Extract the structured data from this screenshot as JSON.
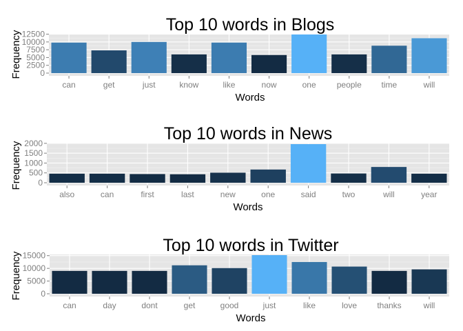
{
  "chart_data": [
    {
      "type": "bar",
      "title": "Top 10 words in Blogs",
      "xlabel": "Words",
      "ylabel": "Frequency",
      "categories": [
        "can",
        "get",
        "just",
        "know",
        "like",
        "now",
        "one",
        "people",
        "time",
        "will"
      ],
      "values": [
        9800,
        7300,
        10000,
        6000,
        9800,
        5800,
        12400,
        6000,
        8800,
        11200
      ],
      "yticks": [
        0,
        2500,
        5000,
        7500,
        10000,
        12500
      ],
      "ylim": [
        0,
        12400
      ],
      "grid": true,
      "legend": "none",
      "color_low": "#132b43",
      "color_high": "#56b1f7"
    },
    {
      "type": "bar",
      "title": "Top 10 words in News",
      "xlabel": "Words",
      "ylabel": "Frequency",
      "categories": [
        "also",
        "can",
        "first",
        "last",
        "new",
        "one",
        "said",
        "two",
        "will",
        "year"
      ],
      "values": [
        460,
        460,
        440,
        430,
        510,
        670,
        1960,
        470,
        800,
        460
      ],
      "yticks": [
        0,
        500,
        1000,
        1500,
        2000
      ],
      "ylim": [
        0,
        1960
      ],
      "grid": true,
      "legend": "none",
      "color_low": "#132b43",
      "color_high": "#56b1f7"
    },
    {
      "type": "bar",
      "title": "Top 10 words in Twitter",
      "xlabel": "Words",
      "ylabel": "Frequency",
      "categories": [
        "can",
        "day",
        "dont",
        "get",
        "good",
        "just",
        "like",
        "love",
        "thanks",
        "will"
      ],
      "values": [
        9000,
        9000,
        9000,
        11200,
        10100,
        15200,
        12500,
        10700,
        9000,
        9600
      ],
      "yticks": [
        0,
        5000,
        10000,
        15000
      ],
      "ylim": [
        0,
        15200
      ],
      "grid": true,
      "legend": "none",
      "color_low": "#132b43",
      "color_high": "#56b1f7"
    }
  ]
}
